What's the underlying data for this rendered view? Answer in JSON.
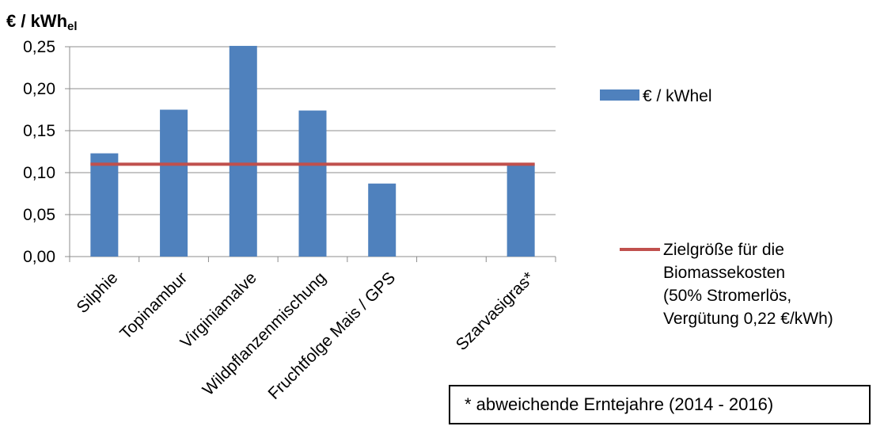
{
  "chart_data": {
    "type": "bar",
    "ylabel_main": "€ / kWh",
    "ylabel_sub": "el",
    "categories": [
      "Silphie",
      "Topinambur",
      "Virginiamalve",
      "Wildpflanzenmischung",
      "Fruchtfolge Mais / GPS",
      "",
      "Szarvasigras*"
    ],
    "series": [
      {
        "name": "€ / kWhel",
        "kind": "bar",
        "color": "#4F81BD",
        "values": [
          0.123,
          0.175,
          0.251,
          0.174,
          0.087,
          null,
          0.111
        ]
      },
      {
        "name": "Zielgröße für die Biomassekosten (50% Stromerlös, Vergütung 0,22 €/kWh)",
        "kind": "line",
        "color": "#C0504D",
        "value": 0.11
      }
    ],
    "legend_line_labels": [
      "Zielgröße für die",
      "Biomassekosten",
      "(50% Stromerlös,",
      "Vergütung 0,22 €/kWh)"
    ],
    "yticks": [
      "0,00",
      "0,05",
      "0,10",
      "0,15",
      "0,20",
      "0,25"
    ],
    "ylim": [
      0,
      0.25
    ],
    "grid": true,
    "legend_position": "right",
    "footnote": "* abweichende Erntejahre (2014 - 2016)"
  }
}
